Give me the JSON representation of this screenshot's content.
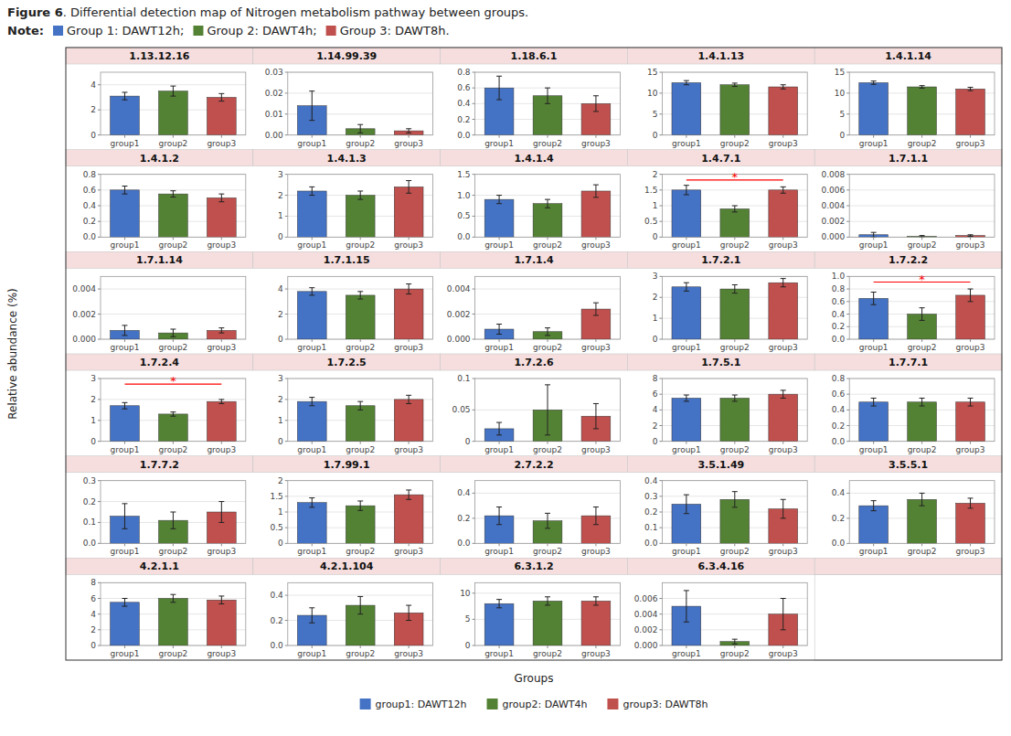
{
  "title": "Figure 6",
  "subtitle": ". Differential detection map of Nitrogen metabolism pathway between groups.",
  "annotations": [
    {
      "text": "Note:"
    },
    {
      "text": "Group 1: DAWT12h;",
      "color": "#4472c4"
    },
    {
      "text": "Group 2: DAWT4h;",
      "color": "#548235"
    },
    {
      "text": "Group 3: DAWT8h.",
      "color": "#c0504d"
    }
  ],
  "x_label": "Groups",
  "y_label": "Relative abundance (%)",
  "legend_entries": [
    {
      "name": "group1: DAWT12h",
      "color": "#4472c4"
    },
    {
      "name": "group2: DAWT4h",
      "color": "#548235"
    },
    {
      "name": "group3: DAWT8h",
      "color": "#c0504d"
    }
  ],
  "chart_data": [
    {
      "type": "bar",
      "title": "1.13.12.16",
      "categories": [
        "group1",
        "group2",
        "group3"
      ],
      "values": [
        3.1,
        3.5,
        3.0
      ],
      "errors": [
        0.3,
        0.4,
        0.3
      ],
      "colors": [
        "#4472c4",
        "#548235",
        "#c0504d"
      ],
      "ylim": [
        0,
        5
      ],
      "yticks": [
        0,
        2,
        4
      ],
      "grid": true
    },
    {
      "type": "bar",
      "title": "1.14.99.39",
      "categories": [
        "group1",
        "group2",
        "group3"
      ],
      "values": [
        0.014,
        0.003,
        0.002
      ],
      "errors": [
        0.007,
        0.002,
        0.001
      ],
      "colors": [
        "#4472c4",
        "#548235",
        "#c0504d"
      ],
      "ylim": [
        0,
        0.03
      ],
      "yticks": [
        {
          "value": 0,
          "label": "0.00"
        },
        0.01,
        0.02,
        0.03
      ],
      "grid": true
    },
    {
      "type": "bar",
      "title": "1.18.6.1",
      "categories": [
        "group1",
        "group2",
        "group3"
      ],
      "values": [
        0.6,
        0.5,
        0.4
      ],
      "errors": [
        0.15,
        0.1,
        0.1
      ],
      "colors": [
        "#4472c4",
        "#548235",
        "#c0504d"
      ],
      "ylim": [
        0,
        0.8
      ],
      "yticks": [
        {
          "value": 0,
          "label": "0.0"
        },
        0.2,
        0.4,
        0.6,
        0.8
      ],
      "grid": true
    },
    {
      "type": "bar",
      "title": "1.4.1.13",
      "categories": [
        "group1",
        "group2",
        "group3"
      ],
      "values": [
        12.5,
        12.0,
        11.5
      ],
      "errors": [
        0.5,
        0.4,
        0.5
      ],
      "colors": [
        "#4472c4",
        "#548235",
        "#c0504d"
      ],
      "ylim": [
        0,
        15
      ],
      "yticks": [
        0,
        5,
        10,
        15
      ],
      "grid": true
    },
    {
      "type": "bar",
      "title": "1.4.1.14",
      "categories": [
        "group1",
        "group2",
        "group3"
      ],
      "values": [
        12.5,
        11.5,
        11.0
      ],
      "errors": [
        0.4,
        0.3,
        0.4
      ],
      "colors": [
        "#4472c4",
        "#548235",
        "#c0504d"
      ],
      "ylim": [
        0,
        15
      ],
      "yticks": [
        0,
        5,
        10,
        15
      ],
      "grid": true
    },
    {
      "type": "bar",
      "title": "1.4.1.2",
      "categories": [
        "group1",
        "group2",
        "group3"
      ],
      "values": [
        0.6,
        0.55,
        0.5
      ],
      "errors": [
        0.05,
        0.04,
        0.05
      ],
      "colors": [
        "#4472c4",
        "#548235",
        "#c0504d"
      ],
      "ylim": [
        0,
        0.8
      ],
      "yticks": [
        {
          "value": 0,
          "label": "0.0"
        },
        0.2,
        0.4,
        0.6,
        0.8
      ],
      "grid": true
    },
    {
      "type": "bar",
      "title": "1.4.1.3",
      "categories": [
        "group1",
        "group2",
        "group3"
      ],
      "values": [
        2.2,
        2.0,
        2.4
      ],
      "errors": [
        0.2,
        0.2,
        0.3
      ],
      "colors": [
        "#4472c4",
        "#548235",
        "#c0504d"
      ],
      "ylim": [
        0,
        3
      ],
      "yticks": [
        0,
        1,
        2,
        3
      ],
      "grid": true
    },
    {
      "type": "bar",
      "title": "1.4.1.4",
      "categories": [
        "group1",
        "group2",
        "group3"
      ],
      "values": [
        0.9,
        0.8,
        1.1
      ],
      "errors": [
        0.1,
        0.1,
        0.15
      ],
      "colors": [
        "#4472c4",
        "#548235",
        "#c0504d"
      ],
      "ylim": [
        0,
        1.5
      ],
      "yticks": [
        {
          "value": 0,
          "label": "0.0"
        },
        0.5,
        {
          "value": 1,
          "label": "1.0"
        },
        1.5
      ],
      "grid": true
    },
    {
      "type": "bar",
      "title": "1.4.7.1",
      "categories": [
        "group1",
        "group2",
        "group3"
      ],
      "values": [
        1.5,
        0.9,
        1.5
      ],
      "errors": [
        0.15,
        0.1,
        0.1
      ],
      "colors": [
        "#4472c4",
        "#548235",
        "#c0504d"
      ],
      "ylim": [
        0,
        2.0
      ],
      "yticks": [
        0,
        0.5,
        1,
        1.5,
        2
      ],
      "grid": true,
      "annotations": [
        {
          "text": "*",
          "categories": [
            "group1",
            "group3"
          ],
          "color": "red"
        }
      ]
    },
    {
      "type": "bar",
      "title": "1.7.1.1",
      "categories": [
        "group1",
        "group2",
        "group3"
      ],
      "values": [
        0.0003,
        0.0001,
        0.0002
      ],
      "errors": [
        0.0003,
        0.0001,
        0.0001
      ],
      "colors": [
        "#4472c4",
        "#548235",
        "#c0504d"
      ],
      "ylim": [
        0,
        0.008
      ],
      "yticks": [
        {
          "value": 0,
          "label": "0.000"
        },
        0.002,
        0.004,
        0.006,
        0.008
      ],
      "grid": true
    },
    {
      "type": "bar",
      "title": "1.7.1.14",
      "categories": [
        "group1",
        "group2",
        "group3"
      ],
      "values": [
        0.0007,
        0.0005,
        0.0007
      ],
      "errors": [
        0.0004,
        0.0003,
        0.0002
      ],
      "colors": [
        "#4472c4",
        "#548235",
        "#c0504d"
      ],
      "ylim": [
        0,
        0.005
      ],
      "yticks": [
        {
          "value": 0,
          "label": "0.000"
        },
        0.002,
        0.004
      ],
      "grid": true
    },
    {
      "type": "bar",
      "title": "1.7.1.15",
      "categories": [
        "group1",
        "group2",
        "group3"
      ],
      "values": [
        3.8,
        3.5,
        4.0
      ],
      "errors": [
        0.3,
        0.3,
        0.4
      ],
      "colors": [
        "#4472c4",
        "#548235",
        "#c0504d"
      ],
      "ylim": [
        0,
        5
      ],
      "yticks": [
        0,
        2,
        4
      ],
      "grid": true
    },
    {
      "type": "bar",
      "title": "1.7.1.4",
      "categories": [
        "group1",
        "group2",
        "group3"
      ],
      "values": [
        0.0008,
        0.0006,
        0.0024
      ],
      "errors": [
        0.0004,
        0.0003,
        0.0005
      ],
      "colors": [
        "#4472c4",
        "#548235",
        "#c0504d"
      ],
      "ylim": [
        0,
        0.005
      ],
      "yticks": [
        {
          "value": 0,
          "label": "0.000"
        },
        0.002,
        0.004
      ],
      "grid": true
    },
    {
      "type": "bar",
      "title": "1.7.2.1",
      "categories": [
        "group1",
        "group2",
        "group3"
      ],
      "values": [
        2.5,
        2.4,
        2.7
      ],
      "errors": [
        0.2,
        0.2,
        0.2
      ],
      "colors": [
        "#4472c4",
        "#548235",
        "#c0504d"
      ],
      "ylim": [
        0,
        3
      ],
      "yticks": [
        0,
        1,
        2,
        3
      ],
      "grid": true
    },
    {
      "type": "bar",
      "title": "1.7.2.2",
      "categories": [
        "group1",
        "group2",
        "group3"
      ],
      "values": [
        0.65,
        0.4,
        0.7
      ],
      "errors": [
        0.1,
        0.1,
        0.1
      ],
      "colors": [
        "#4472c4",
        "#548235",
        "#c0504d"
      ],
      "ylim": [
        0,
        1.0
      ],
      "yticks": [
        {
          "value": 0,
          "label": "0.0"
        },
        0.2,
        0.4,
        0.6,
        0.8,
        {
          "value": 1,
          "label": "1.0"
        }
      ],
      "grid": true,
      "annotations": [
        {
          "text": "*",
          "categories": [
            "group1",
            "group3"
          ],
          "color": "red"
        }
      ]
    },
    {
      "type": "bar",
      "title": "1.7.2.4",
      "categories": [
        "group1",
        "group2",
        "group3"
      ],
      "values": [
        1.7,
        1.3,
        1.9
      ],
      "errors": [
        0.15,
        0.1,
        0.1
      ],
      "colors": [
        "#4472c4",
        "#548235",
        "#c0504d"
      ],
      "ylim": [
        0,
        3
      ],
      "yticks": [
        0,
        1,
        2,
        3
      ],
      "grid": true,
      "annotations": [
        {
          "text": "*",
          "categories": [
            "group1",
            "group3"
          ],
          "color": "red"
        }
      ]
    },
    {
      "type": "bar",
      "title": "1.7.2.5",
      "categories": [
        "group1",
        "group2",
        "group3"
      ],
      "values": [
        1.9,
        1.7,
        2.0
      ],
      "errors": [
        0.2,
        0.2,
        0.2
      ],
      "colors": [
        "#4472c4",
        "#548235",
        "#c0504d"
      ],
      "ylim": [
        0,
        3
      ],
      "yticks": [
        0,
        1,
        2,
        3
      ],
      "grid": true
    },
    {
      "type": "bar",
      "title": "1.7.2.6",
      "categories": [
        "group1",
        "group2",
        "group3"
      ],
      "values": [
        0.02,
        0.05,
        0.04
      ],
      "errors": [
        0.01,
        0.04,
        0.02
      ],
      "colors": [
        "#4472c4",
        "#548235",
        "#c0504d"
      ],
      "ylim": [
        0,
        0.1
      ],
      "yticks": [
        0,
        0.05,
        0.1
      ],
      "grid": true
    },
    {
      "type": "bar",
      "title": "1.7.5.1",
      "categories": [
        "group1",
        "group2",
        "group3"
      ],
      "values": [
        5.5,
        5.5,
        6.0
      ],
      "errors": [
        0.4,
        0.4,
        0.5
      ],
      "colors": [
        "#4472c4",
        "#548235",
        "#c0504d"
      ],
      "ylim": [
        0,
        8
      ],
      "yticks": [
        0,
        2,
        4,
        6,
        8
      ],
      "grid": true
    },
    {
      "type": "bar",
      "title": "1.7.7.1",
      "categories": [
        "group1",
        "group2",
        "group3"
      ],
      "values": [
        0.5,
        0.5,
        0.5
      ],
      "errors": [
        0.05,
        0.05,
        0.05
      ],
      "colors": [
        "#4472c4",
        "#548235",
        "#c0504d"
      ],
      "ylim": [
        0,
        0.8
      ],
      "yticks": [
        {
          "value": 0,
          "label": "0.0"
        },
        0.2,
        0.4,
        0.6,
        0.8
      ],
      "grid": true
    },
    {
      "type": "bar",
      "title": "1.7.7.2",
      "categories": [
        "group1",
        "group2",
        "group3"
      ],
      "values": [
        0.13,
        0.11,
        0.15
      ],
      "errors": [
        0.06,
        0.04,
        0.05
      ],
      "colors": [
        "#4472c4",
        "#548235",
        "#c0504d"
      ],
      "ylim": [
        0,
        0.3
      ],
      "yticks": [
        {
          "value": 0,
          "label": "0.0"
        },
        0.1,
        0.2,
        0.3
      ],
      "grid": true
    },
    {
      "type": "bar",
      "title": "1.7.99.1",
      "categories": [
        "group1",
        "group2",
        "group3"
      ],
      "values": [
        1.3,
        1.2,
        1.55
      ],
      "errors": [
        0.15,
        0.15,
        0.15
      ],
      "colors": [
        "#4472c4",
        "#548235",
        "#c0504d"
      ],
      "ylim": [
        0,
        2.0
      ],
      "yticks": [
        0,
        0.5,
        1,
        1.5,
        2
      ],
      "grid": true
    },
    {
      "type": "bar",
      "title": "2.7.2.2",
      "categories": [
        "group1",
        "group2",
        "group3"
      ],
      "values": [
        0.22,
        0.18,
        0.22
      ],
      "errors": [
        0.07,
        0.06,
        0.07
      ],
      "colors": [
        "#4472c4",
        "#548235",
        "#c0504d"
      ],
      "ylim": [
        0,
        0.5
      ],
      "yticks": [
        {
          "value": 0,
          "label": "0.0"
        },
        0.2,
        0.4
      ],
      "grid": true
    },
    {
      "type": "bar",
      "title": "3.5.1.49",
      "categories": [
        "group1",
        "group2",
        "group3"
      ],
      "values": [
        0.25,
        0.28,
        0.22
      ],
      "errors": [
        0.06,
        0.05,
        0.06
      ],
      "colors": [
        "#4472c4",
        "#548235",
        "#c0504d"
      ],
      "ylim": [
        0,
        0.4
      ],
      "yticks": [
        {
          "value": 0,
          "label": "0.0"
        },
        0.1,
        0.2,
        0.3,
        0.4
      ],
      "grid": true
    },
    {
      "type": "bar",
      "title": "3.5.5.1",
      "categories": [
        "group1",
        "group2",
        "group3"
      ],
      "values": [
        0.3,
        0.35,
        0.32
      ],
      "errors": [
        0.04,
        0.05,
        0.04
      ],
      "colors": [
        "#4472c4",
        "#548235",
        "#c0504d"
      ],
      "ylim": [
        0,
        0.5
      ],
      "yticks": [
        {
          "value": 0,
          "label": "0.0"
        },
        0.2,
        0.4
      ],
      "grid": true
    },
    {
      "type": "bar",
      "title": "4.2.1.1",
      "categories": [
        "group1",
        "group2",
        "group3"
      ],
      "values": [
        5.5,
        6.0,
        5.8
      ],
      "errors": [
        0.5,
        0.5,
        0.5
      ],
      "colors": [
        "#4472c4",
        "#548235",
        "#c0504d"
      ],
      "ylim": [
        0,
        8
      ],
      "yticks": [
        0,
        2,
        4,
        6,
        8
      ],
      "grid": true
    },
    {
      "type": "bar",
      "title": "4.2.1.104",
      "categories": [
        "group1",
        "group2",
        "group3"
      ],
      "values": [
        0.24,
        0.32,
        0.26
      ],
      "errors": [
        0.06,
        0.07,
        0.06
      ],
      "colors": [
        "#4472c4",
        "#548235",
        "#c0504d"
      ],
      "ylim": [
        0,
        0.5
      ],
      "yticks": [
        {
          "value": 0,
          "label": "0.0"
        },
        0.2,
        0.4
      ],
      "grid": true
    },
    {
      "type": "bar",
      "title": "6.3.1.2",
      "categories": [
        "group1",
        "group2",
        "group3"
      ],
      "values": [
        8.0,
        8.5,
        8.5
      ],
      "errors": [
        0.8,
        0.8,
        0.8
      ],
      "colors": [
        "#4472c4",
        "#548235",
        "#c0504d"
      ],
      "ylim": [
        0,
        12
      ],
      "yticks": [
        0,
        5,
        10
      ],
      "grid": true
    },
    {
      "type": "bar",
      "title": "6.3.4.16",
      "categories": [
        "group1",
        "group2",
        "group3"
      ],
      "values": [
        0.005,
        0.0005,
        0.004
      ],
      "errors": [
        0.002,
        0.0003,
        0.002
      ],
      "colors": [
        "#4472c4",
        "#548235",
        "#c0504d"
      ],
      "ylim": [
        0,
        0.008
      ],
      "yticks": [
        {
          "value": 0,
          "label": "0.000"
        },
        0.002,
        0.004,
        0.006
      ],
      "grid": true
    }
  ]
}
